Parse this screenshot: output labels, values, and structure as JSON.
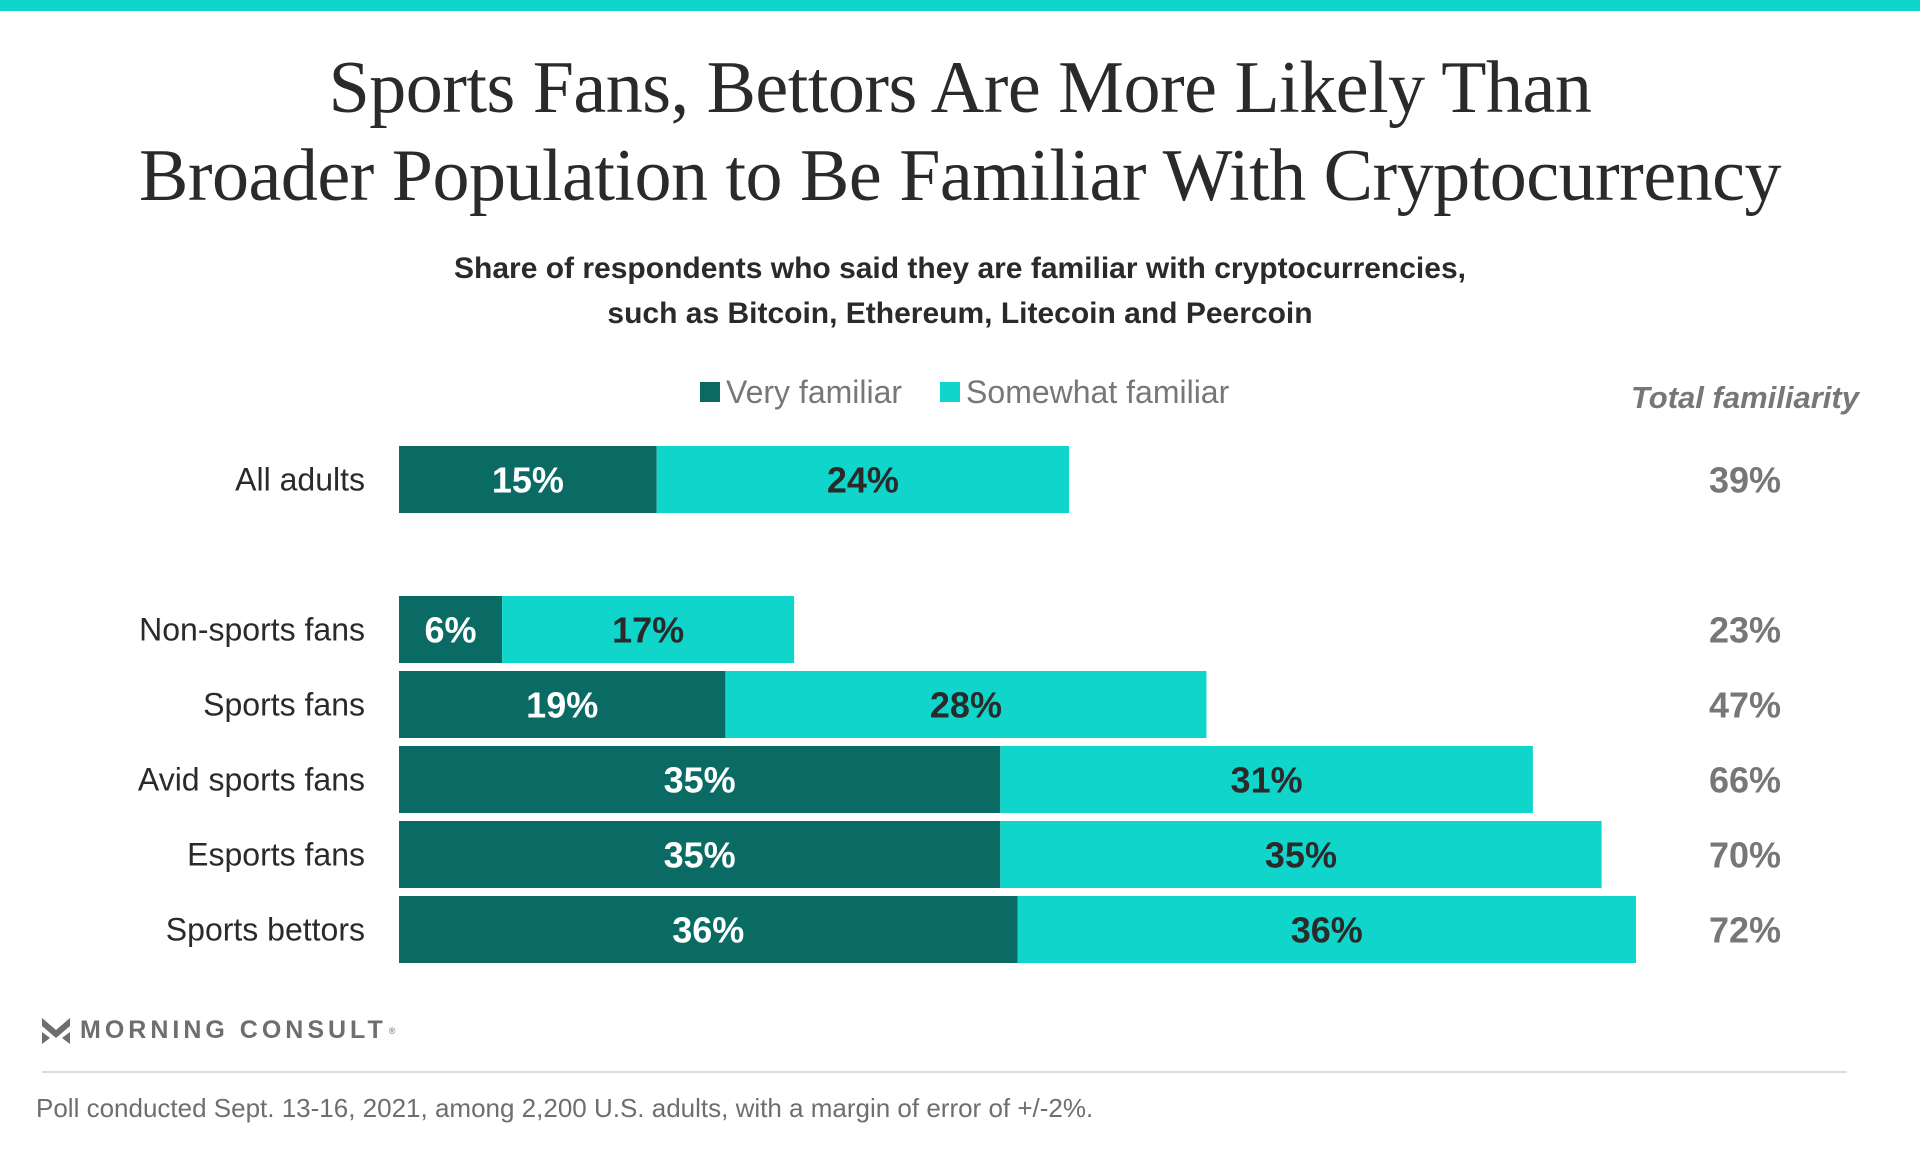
{
  "title": {
    "line1": "Sports Fans, Bettors Are More Likely Than",
    "line2": "Broader Population to Be Familiar With Cryptocurrency"
  },
  "subtitle": {
    "line1": "Share of respondents who said they are familiar with cryptocurrencies,",
    "line2": "such as Bitcoin, Ethereum, Litecoin and Peercoin"
  },
  "colors": {
    "accent_bar": "#10d5cb",
    "very_familiar": "#0a6b65",
    "somewhat_familiar": "#10d5cb",
    "total_text": "#777777"
  },
  "chart_data": {
    "type": "bar",
    "orientation": "horizontal",
    "stacked": true,
    "title": "Sports Fans, Bettors Are More Likely Than Broader Population to Be Familiar With Cryptocurrency",
    "subtitle": "Share of respondents who said they are familiar with cryptocurrencies, such as Bitcoin, Ethereum, Litecoin and Peercoin",
    "categories": [
      "All adults",
      "Non-sports fans",
      "Sports fans",
      "Avid sports fans",
      "Esports fans",
      "Sports bettors"
    ],
    "series": [
      {
        "name": "Very familiar",
        "values": [
          15,
          6,
          19,
          35,
          35,
          36
        ],
        "labels": [
          "15%",
          "6%",
          "19%",
          "35%",
          "35%",
          "36%"
        ]
      },
      {
        "name": "Somewhat familiar",
        "values": [
          24,
          17,
          28,
          31,
          35,
          36
        ],
        "labels": [
          "24%",
          "17%",
          "28%",
          "31%",
          "35%",
          "36%"
        ]
      }
    ],
    "totals": {
      "header": "Total familiarity",
      "values": [
        39,
        23,
        47,
        66,
        70,
        72
      ],
      "labels": [
        "39%",
        "23%",
        "47%",
        "66%",
        "70%",
        "72%"
      ]
    },
    "xlim": [
      0,
      100
    ],
    "legend_position": "top",
    "grid": false,
    "xlabel": "",
    "ylabel": ""
  },
  "legend": {
    "items": [
      {
        "label": "Very familiar"
      },
      {
        "label": "Somewhat familiar"
      }
    ]
  },
  "footer": {
    "brand": "MORNING CONSULT",
    "registered": "®",
    "note": "Poll conducted Sept. 13-16, 2021, among 2,200 U.S. adults, with a margin of error of +/-2%."
  }
}
